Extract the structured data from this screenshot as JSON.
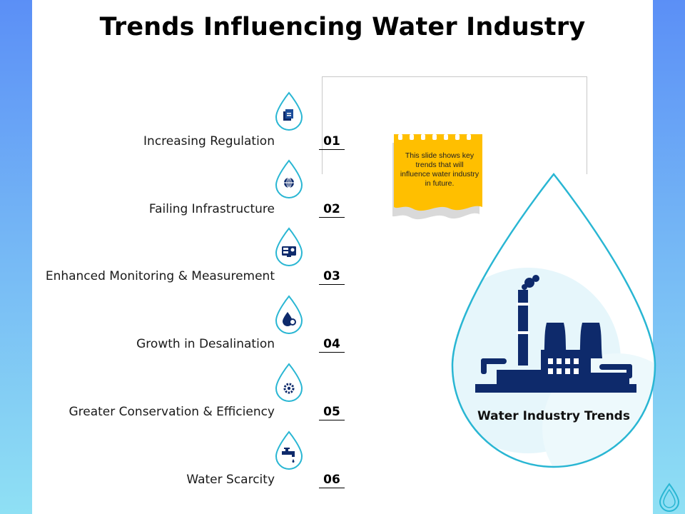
{
  "title": "Trends Influencing Water Industry",
  "trends": [
    {
      "number": "01",
      "label": "Increasing Regulation",
      "icon": "documents-icon"
    },
    {
      "number": "02",
      "label": "Failing Infrastructure",
      "icon": "globe-network-icon"
    },
    {
      "number": "03",
      "label": "Enhanced Monitoring & Measurement",
      "icon": "monitor-dashboard-icon"
    },
    {
      "number": "04",
      "label": "Growth in Desalination",
      "icon": "water-gear-icon"
    },
    {
      "number": "05",
      "label": "Greater Conservation & Efficiency",
      "icon": "gear-icon"
    },
    {
      "number": "06",
      "label": "Water Scarcity",
      "icon": "faucet-icon"
    }
  ],
  "note": {
    "text": "This slide shows key trends that will influence water industry in future."
  },
  "center": {
    "caption": "Water Industry Trends",
    "icon": "factory-icon"
  },
  "colors": {
    "accent": "#29b6d3",
    "navy": "#0e2a6b",
    "note_yellow": "#ffbf00",
    "background_top": "#5b8ff6",
    "background_bottom": "#8fe0f4"
  }
}
